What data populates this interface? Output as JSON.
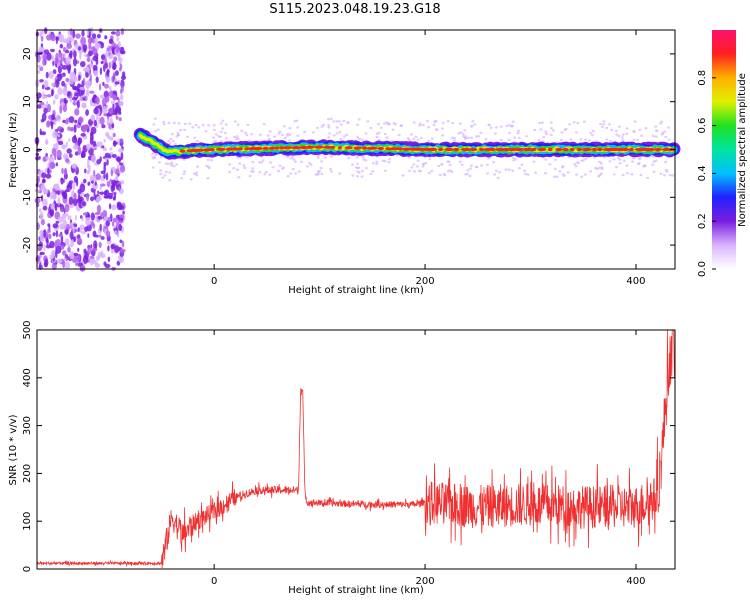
{
  "title": "S115.2023.048.19.23.G18",
  "chart_data": [
    {
      "type": "heatmap",
      "xlabel": "Height of straight line (km)",
      "ylabel": "Frequency (Hz)",
      "xlim": [
        -168,
        437
      ],
      "ylim": [
        -25,
        25
      ],
      "xticks": [
        0,
        200,
        400
      ],
      "yticks": [
        -20,
        -10,
        0,
        10,
        20
      ],
      "colorbar": {
        "label": "Normalized spectral amplitude",
        "range": [
          0,
          1
        ],
        "ticks": [
          0.0,
          0.2,
          0.4,
          0.6,
          0.8
        ],
        "colormap": [
          "#ffffff",
          "#d9b3ff",
          "#7a1fe0",
          "#2020ff",
          "#00c0ff",
          "#00e5a0",
          "#20e020",
          "#e0f000",
          "#ffb000",
          "#ff2020",
          "#ff1070"
        ]
      },
      "ridge": [
        {
          "x": -168,
          "y": 0
        },
        {
          "x": -92,
          "y": -12.5
        },
        {
          "x": -82,
          "y": 8
        },
        {
          "x": -70,
          "y": 3
        },
        {
          "x": -55,
          "y": 1
        },
        {
          "x": -45,
          "y": -0.5
        },
        {
          "x": 0,
          "y": 0
        },
        {
          "x": 100,
          "y": 0.5
        },
        {
          "x": 200,
          "y": 0
        },
        {
          "x": 300,
          "y": 0
        },
        {
          "x": 437,
          "y": 0
        }
      ],
      "grid": false,
      "legend": "colorbar-right"
    },
    {
      "type": "line",
      "xlabel": "Height of straight line (km)",
      "ylabel": "SNR (10 * v/v)",
      "xlim": [
        -168,
        437
      ],
      "ylim": [
        0,
        500
      ],
      "xticks": [
        0,
        200,
        400
      ],
      "yticks": [
        0,
        100,
        200,
        300,
        400,
        500
      ],
      "color": "#f03030",
      "series": [
        {
          "x": [
            -168,
            -100,
            -50,
            -45,
            -40,
            -30,
            -20,
            0,
            20,
            40,
            60,
            80,
            82,
            84,
            86,
            88,
            100,
            150,
            190,
            200,
            250,
            300,
            350,
            400,
            420,
            425,
            430,
            435,
            437
          ],
          "values": [
            12,
            12,
            12,
            60,
            110,
            70,
            95,
            120,
            150,
            165,
            165,
            165,
            380,
            370,
            160,
            140,
            138,
            135,
            135,
            140,
            130,
            135,
            130,
            130,
            150,
            250,
            400,
            480,
            440
          ]
        }
      ],
      "grid": false
    }
  ]
}
